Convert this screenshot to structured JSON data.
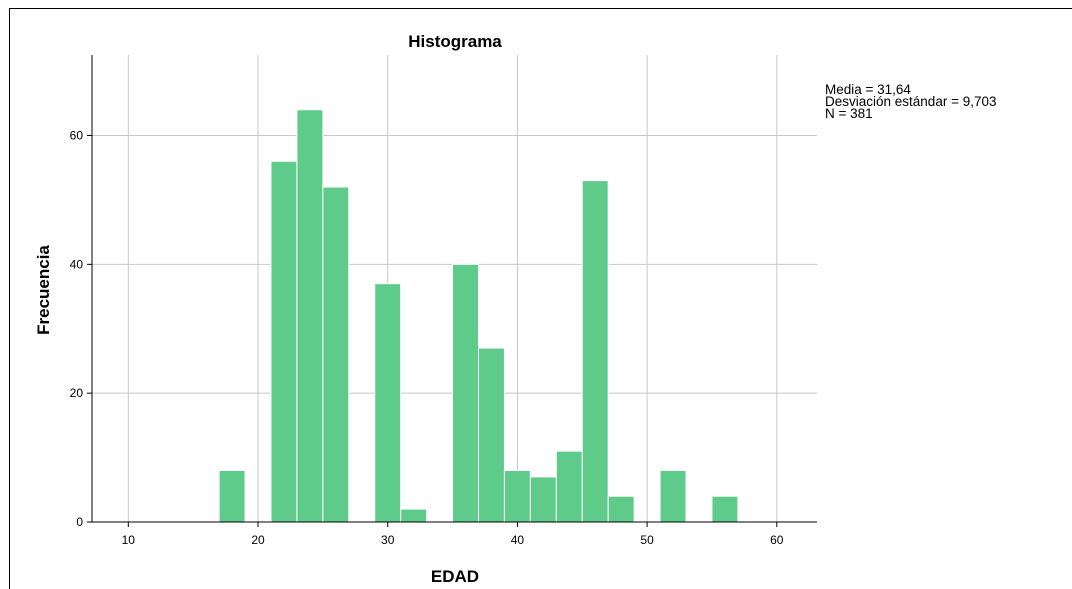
{
  "chart_data": {
    "type": "bar",
    "title": "Histograma",
    "xlabel": "EDAD",
    "ylabel": "Frecuencia",
    "xlim": [
      7.2,
      63.1
    ],
    "ylim": [
      0,
      72.5
    ],
    "xticks": [
      10,
      20,
      30,
      40,
      50,
      60
    ],
    "yticks": [
      0,
      20,
      40,
      60
    ],
    "grid": true,
    "bins": [
      {
        "x0": 17,
        "x1": 19,
        "value": 8
      },
      {
        "x0": 21,
        "x1": 23,
        "value": 56
      },
      {
        "x0": 23,
        "x1": 25,
        "value": 64
      },
      {
        "x0": 25,
        "x1": 27,
        "value": 52
      },
      {
        "x0": 29,
        "x1": 31,
        "value": 37
      },
      {
        "x0": 31,
        "x1": 33,
        "value": 2
      },
      {
        "x0": 35,
        "x1": 37,
        "value": 40
      },
      {
        "x0": 37,
        "x1": 39,
        "value": 27
      },
      {
        "x0": 39,
        "x1": 41,
        "value": 8
      },
      {
        "x0": 41,
        "x1": 43,
        "value": 7
      },
      {
        "x0": 43,
        "x1": 45,
        "value": 11
      },
      {
        "x0": 45,
        "x1": 47,
        "value": 53
      },
      {
        "x0": 47,
        "x1": 49,
        "value": 4
      },
      {
        "x0": 51,
        "x1": 53,
        "value": 8
      },
      {
        "x0": 55,
        "x1": 57,
        "value": 4
      }
    ],
    "bar_color": "#5ecb8b",
    "stats": {
      "mean_label": "Media = 31,64",
      "sd_label": "Desviación estándar = 9,703",
      "n_label": "N = 381"
    }
  }
}
